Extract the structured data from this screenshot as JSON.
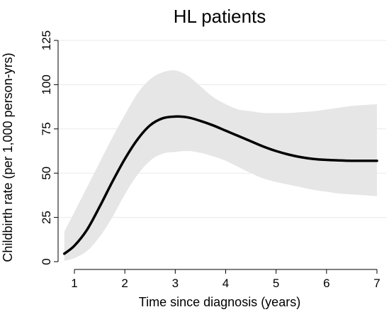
{
  "chart_data": {
    "type": "line",
    "title": "HL patients",
    "xlabel": "Time since diagnosis (years)",
    "ylabel": "Childbirth rate (per 1,000 person-yrs)",
    "xlim": [
      0.75,
      7.05
    ],
    "ylim": [
      0,
      125
    ],
    "x_ticks": [
      1,
      2,
      3,
      4,
      5,
      6,
      7
    ],
    "y_ticks": [
      0,
      25,
      50,
      75,
      100,
      125
    ],
    "x_tick_labels": [
      "1",
      "2",
      "3",
      "4",
      "5",
      "6",
      "7"
    ],
    "y_tick_labels": [
      "0",
      "25",
      "50",
      "75",
      "100",
      "125"
    ],
    "grid": "horizontal",
    "colors": {
      "line": "#000000",
      "band": "#e6e6e6",
      "grid": "#eaeaea"
    },
    "series": [
      {
        "x": [
          0.8,
          1.0,
          1.25,
          1.5,
          1.75,
          2.0,
          2.25,
          2.5,
          2.75,
          3.0,
          3.25,
          3.5,
          3.75,
          4.0,
          4.25,
          4.5,
          4.75,
          5.0,
          5.25,
          5.5,
          5.75,
          6.0,
          6.25,
          6.5,
          6.75,
          7.0
        ],
        "y": [
          4.5,
          9,
          18,
          31,
          45,
          58,
          69,
          77,
          81,
          82,
          81.5,
          79.5,
          77,
          74,
          71,
          68,
          65,
          62.5,
          60.5,
          59,
          58,
          57.5,
          57.2,
          57,
          57,
          57
        ],
        "upper": [
          17,
          28,
          42,
          56,
          70,
          83,
          95,
          103,
          107,
          108,
          105,
          99,
          93,
          89,
          86,
          85,
          84,
          84,
          84,
          84.5,
          85,
          86,
          87,
          88,
          88.5,
          89
        ],
        "lower": [
          0.5,
          2,
          6,
          14,
          25,
          38,
          49,
          57,
          61,
          62,
          62.5,
          61.5,
          59.5,
          57,
          53.5,
          50,
          47,
          45,
          43.5,
          42,
          40.5,
          39.5,
          38.5,
          38,
          37.5,
          37
        ]
      }
    ]
  }
}
